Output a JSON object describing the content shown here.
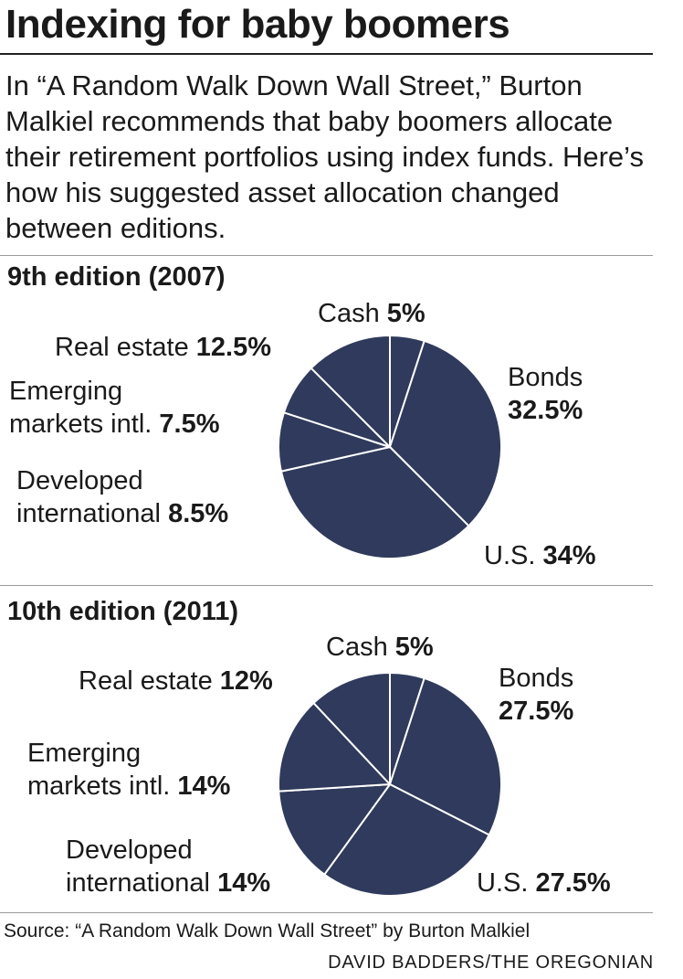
{
  "title": "Indexing for baby boomers",
  "intro": "In “A Random Walk Down Wall Street,” Burton Malkiel recommends that baby boomers allocate their retirement portfolios using index funds. Here’s how his suggested asset allocation changed between editions.",
  "pie_color": "#2f3a5c",
  "chart_data": [
    {
      "type": "pie",
      "title": "9th edition (2007)",
      "slices": [
        {
          "label": "Cash",
          "value": 5,
          "display": "5%"
        },
        {
          "label": "Bonds",
          "value": 32.5,
          "display": "32.5%"
        },
        {
          "label": "U.S.",
          "value": 34,
          "display": "34%"
        },
        {
          "label": "Developed international",
          "value": 8.5,
          "display": "8.5%"
        },
        {
          "label": "Emerging markets intl.",
          "value": 7.5,
          "display": "7.5%"
        },
        {
          "label": "Real estate",
          "value": 12.5,
          "display": "12.5%"
        }
      ]
    },
    {
      "type": "pie",
      "title": "10th edition (2011)",
      "slices": [
        {
          "label": "Cash",
          "value": 5,
          "display": "5%"
        },
        {
          "label": "Bonds",
          "value": 27.5,
          "display": "27.5%"
        },
        {
          "label": "U.S.",
          "value": 27.5,
          "display": "27.5%"
        },
        {
          "label": "Developed international",
          "value": 14,
          "display": "14%"
        },
        {
          "label": "Emerging markets intl.",
          "value": 14,
          "display": "14%"
        },
        {
          "label": "Real estate",
          "value": 12,
          "display": "12%"
        }
      ]
    }
  ],
  "labels": {
    "chart1": {
      "cash_name": "Cash",
      "bonds_name": "Bonds",
      "us_name": "U.S.",
      "developed_line1": "Developed",
      "developed_line2": "international",
      "emerging_line1": "Emerging",
      "emerging_line2": "markets intl.",
      "real_estate_name": "Real estate"
    },
    "chart2": {
      "cash_name": "Cash",
      "bonds_name": "Bonds",
      "us_name": "U.S.",
      "developed_line1": "Developed",
      "developed_line2": "international",
      "emerging_line1": "Emerging",
      "emerging_line2": "markets intl.",
      "real_estate_name": "Real estate"
    }
  },
  "source": "Source: “A Random Walk Down Wall Street” by Burton Malkiel",
  "credit": "DAVID BADDERS/THE OREGONIAN"
}
